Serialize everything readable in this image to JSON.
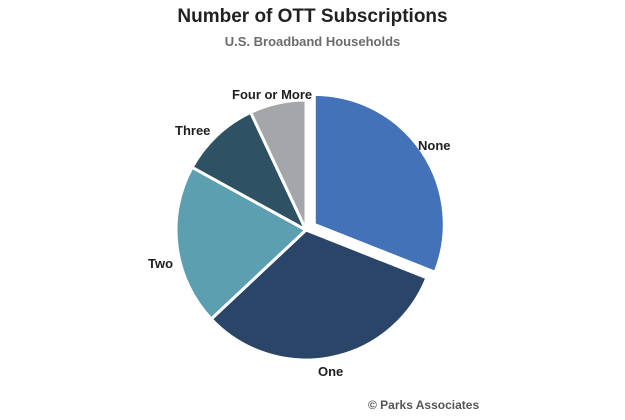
{
  "chart_data": {
    "type": "pie",
    "title": "Number of OTT Subscriptions",
    "subtitle": "U.S. Broadband Households",
    "categories": [
      "None",
      "One",
      "Two",
      "Three",
      "Four or More"
    ],
    "values": [
      31,
      32,
      20,
      10,
      7
    ],
    "unit": "%",
    "exploded": [
      "None"
    ],
    "colors": [
      "#4472b8",
      "#2a4568",
      "#5b9fb0",
      "#2e5263",
      "#a4a6a9"
    ],
    "legend": "none"
  },
  "source": "© Parks Associates"
}
